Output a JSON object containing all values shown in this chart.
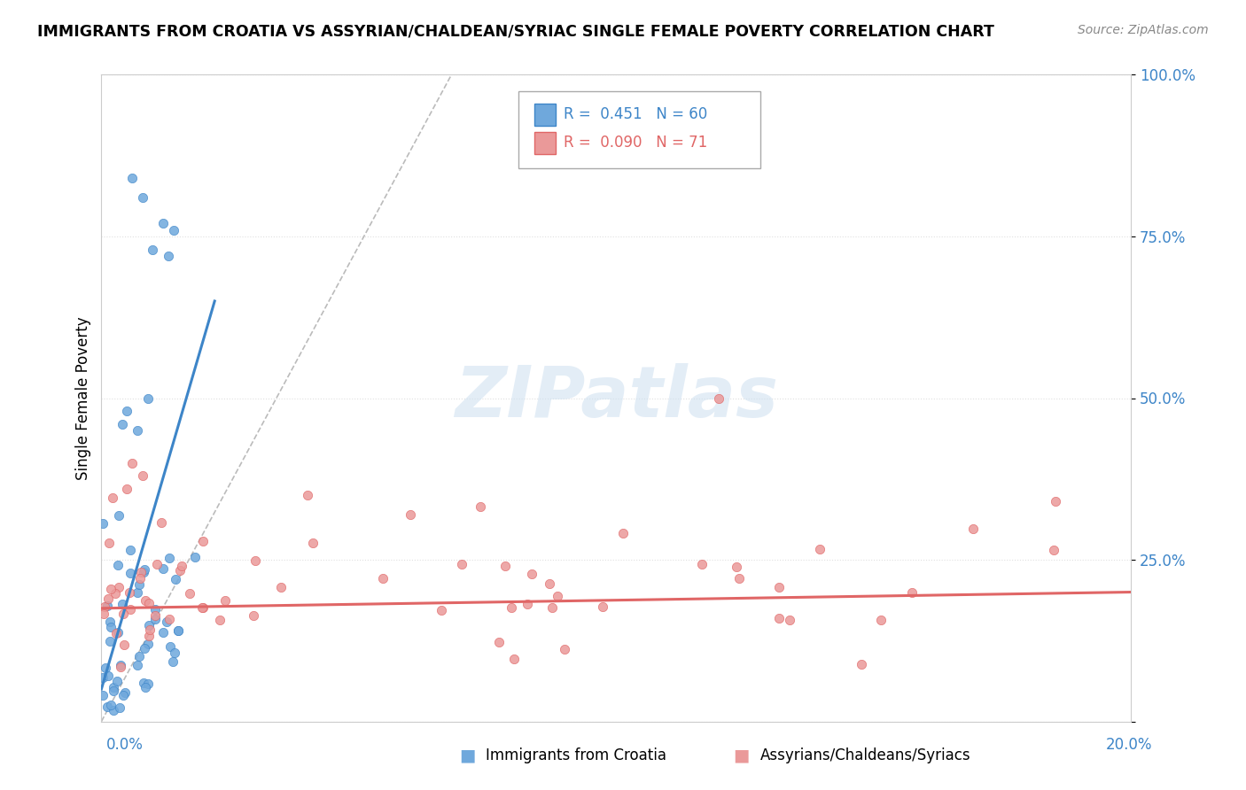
{
  "title": "IMMIGRANTS FROM CROATIA VS ASSYRIAN/CHALDEAN/SYRIAC SINGLE FEMALE POVERTY CORRELATION CHART",
  "source": "Source: ZipAtlas.com",
  "ylabel": "Single Female Poverty",
  "legend_label1": "Immigrants from Croatia",
  "legend_label2": "Assyrians/Chaldeans/Syriacs",
  "R1": 0.451,
  "N1": 60,
  "R2": 0.09,
  "N2": 71,
  "color1": "#6fa8dc",
  "color2": "#ea9999",
  "color1_dark": "#3d85c8",
  "color2_dark": "#e06666",
  "xmin": 0.0,
  "xmax": 0.2,
  "ymin": 0.0,
  "ymax": 1.0,
  "yticks": [
    0.0,
    0.25,
    0.5,
    0.75,
    1.0
  ],
  "ytick_labels": [
    "",
    "25.0%",
    "50.0%",
    "75.0%",
    "100.0%"
  ]
}
